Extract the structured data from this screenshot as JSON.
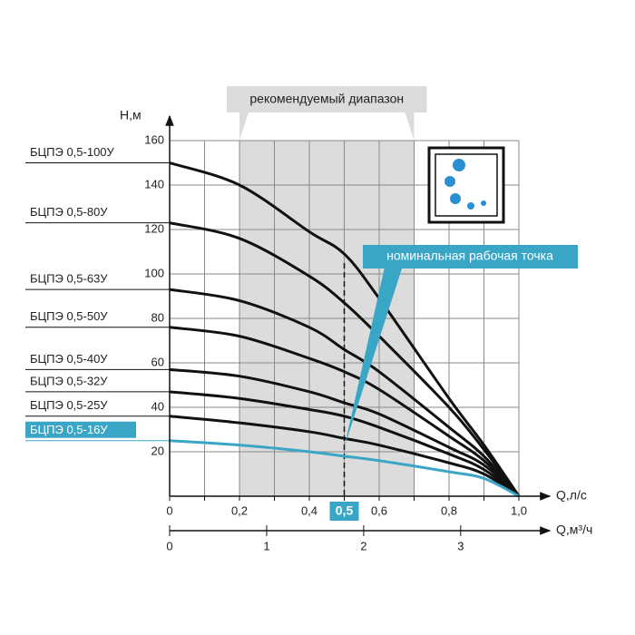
{
  "chart_data": {
    "type": "line",
    "xlabel": "Q,л/с",
    "ylabel": "Н,м",
    "x2label": "Q,м³/ч",
    "x": [
      0,
      0.2,
      0.4,
      0.5,
      0.6,
      0.8,
      0.9,
      1.0
    ],
    "series": [
      {
        "name": "БЦПЭ 0,5-100У",
        "color": "#111111",
        "values": [
          150,
          140,
          119,
          109,
          89,
          44,
          23,
          0
        ]
      },
      {
        "name": "БЦПЭ 0,5-80У",
        "color": "#111111",
        "values": [
          123,
          116,
          99,
          87,
          72,
          40,
          21,
          0
        ]
      },
      {
        "name": "БЦПЭ 0,5-63У",
        "color": "#111111",
        "values": [
          93,
          88,
          76,
          66,
          56,
          31,
          18,
          0
        ]
      },
      {
        "name": "БЦПЭ 0,5-50У",
        "color": "#111111",
        "values": [
          76,
          72,
          62,
          56,
          48,
          27,
          16,
          0
        ]
      },
      {
        "name": "БЦПЭ 0,5-40У",
        "color": "#111111",
        "values": [
          57,
          54,
          47,
          42,
          37,
          22,
          14,
          0
        ]
      },
      {
        "name": "БЦПЭ 0,5-32У",
        "color": "#111111",
        "values": [
          47,
          44,
          39,
          36,
          31,
          19,
          12,
          0
        ]
      },
      {
        "name": "БЦПЭ 0,5-25У",
        "color": "#111111",
        "values": [
          36,
          33,
          29,
          26,
          23,
          15,
          10,
          0
        ]
      },
      {
        "name": "БЦПЭ 0,5-16У",
        "color": "#3aa6c6",
        "values": [
          25,
          23,
          20,
          18,
          16,
          11,
          8,
          0
        ]
      }
    ],
    "xlim": [
      0,
      1.0
    ],
    "ylim": [
      0,
      160
    ],
    "xticks": [
      0,
      {
        "value": 0.2,
        "label": "0,2"
      },
      {
        "value": 0.4,
        "label": "0,4"
      },
      {
        "value": 0.5,
        "label": "0,5"
      },
      {
        "value": 0.6,
        "label": "0,6"
      },
      {
        "value": 0.8,
        "label": "0,8"
      },
      {
        "value": 1.0,
        "label": "1,0"
      }
    ],
    "xgrid": [
      0.1,
      0.3,
      0.7,
      0.9
    ],
    "yticks": [
      20,
      40,
      60,
      80,
      100,
      120,
      140,
      160
    ],
    "x2lim": [
      0,
      3.6
    ],
    "x2ticks": [
      0,
      1,
      2,
      3
    ],
    "grid": true,
    "range": {
      "label": "рекомендуемый диапазон",
      "from": 0.2,
      "to": 0.7
    },
    "nominal_point": {
      "label": "номинальная рабочая точка",
      "x": 0.5,
      "y": 22
    }
  }
}
